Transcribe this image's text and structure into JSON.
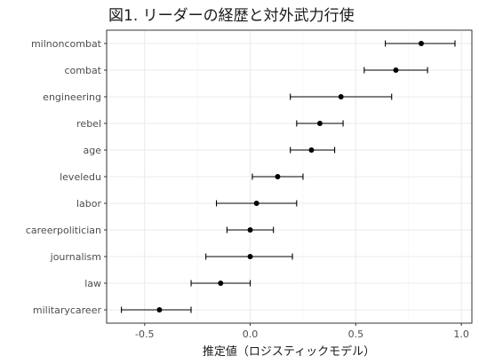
{
  "chart_data": {
    "type": "scatter",
    "title": "図1. リーダーの経歴と対外武力行使",
    "xlabel": "推定値（ロジスティックモデル）",
    "ylabel": "",
    "xlim": [
      -0.68,
      1.05
    ],
    "grid": true,
    "legend": "none",
    "x_ticks": [
      "-0.5",
      "0.0",
      "0.5",
      "1.0"
    ],
    "x_tick_values": [
      -0.5,
      0.0,
      0.5,
      1.0
    ],
    "categories": [
      "milnoncombat",
      "combat",
      "engineering",
      "rebel",
      "age",
      "leveledu",
      "labor",
      "careerpolitician",
      "journalism",
      "law",
      "militarycareer"
    ],
    "estimates": [
      0.81,
      0.69,
      0.43,
      0.33,
      0.29,
      0.13,
      0.03,
      0.0,
      0.0,
      -0.14,
      -0.43
    ],
    "ci_low": [
      0.64,
      0.54,
      0.19,
      0.22,
      0.19,
      0.01,
      -0.16,
      -0.11,
      -0.21,
      -0.28,
      -0.61
    ],
    "ci_high": [
      0.97,
      0.84,
      0.67,
      0.44,
      0.4,
      0.25,
      0.22,
      0.11,
      0.2,
      0.0,
      -0.28
    ],
    "colors": {
      "point": "#000000",
      "panel": "#ffffff",
      "grid": "#ebebeb",
      "border": "#333333"
    }
  }
}
